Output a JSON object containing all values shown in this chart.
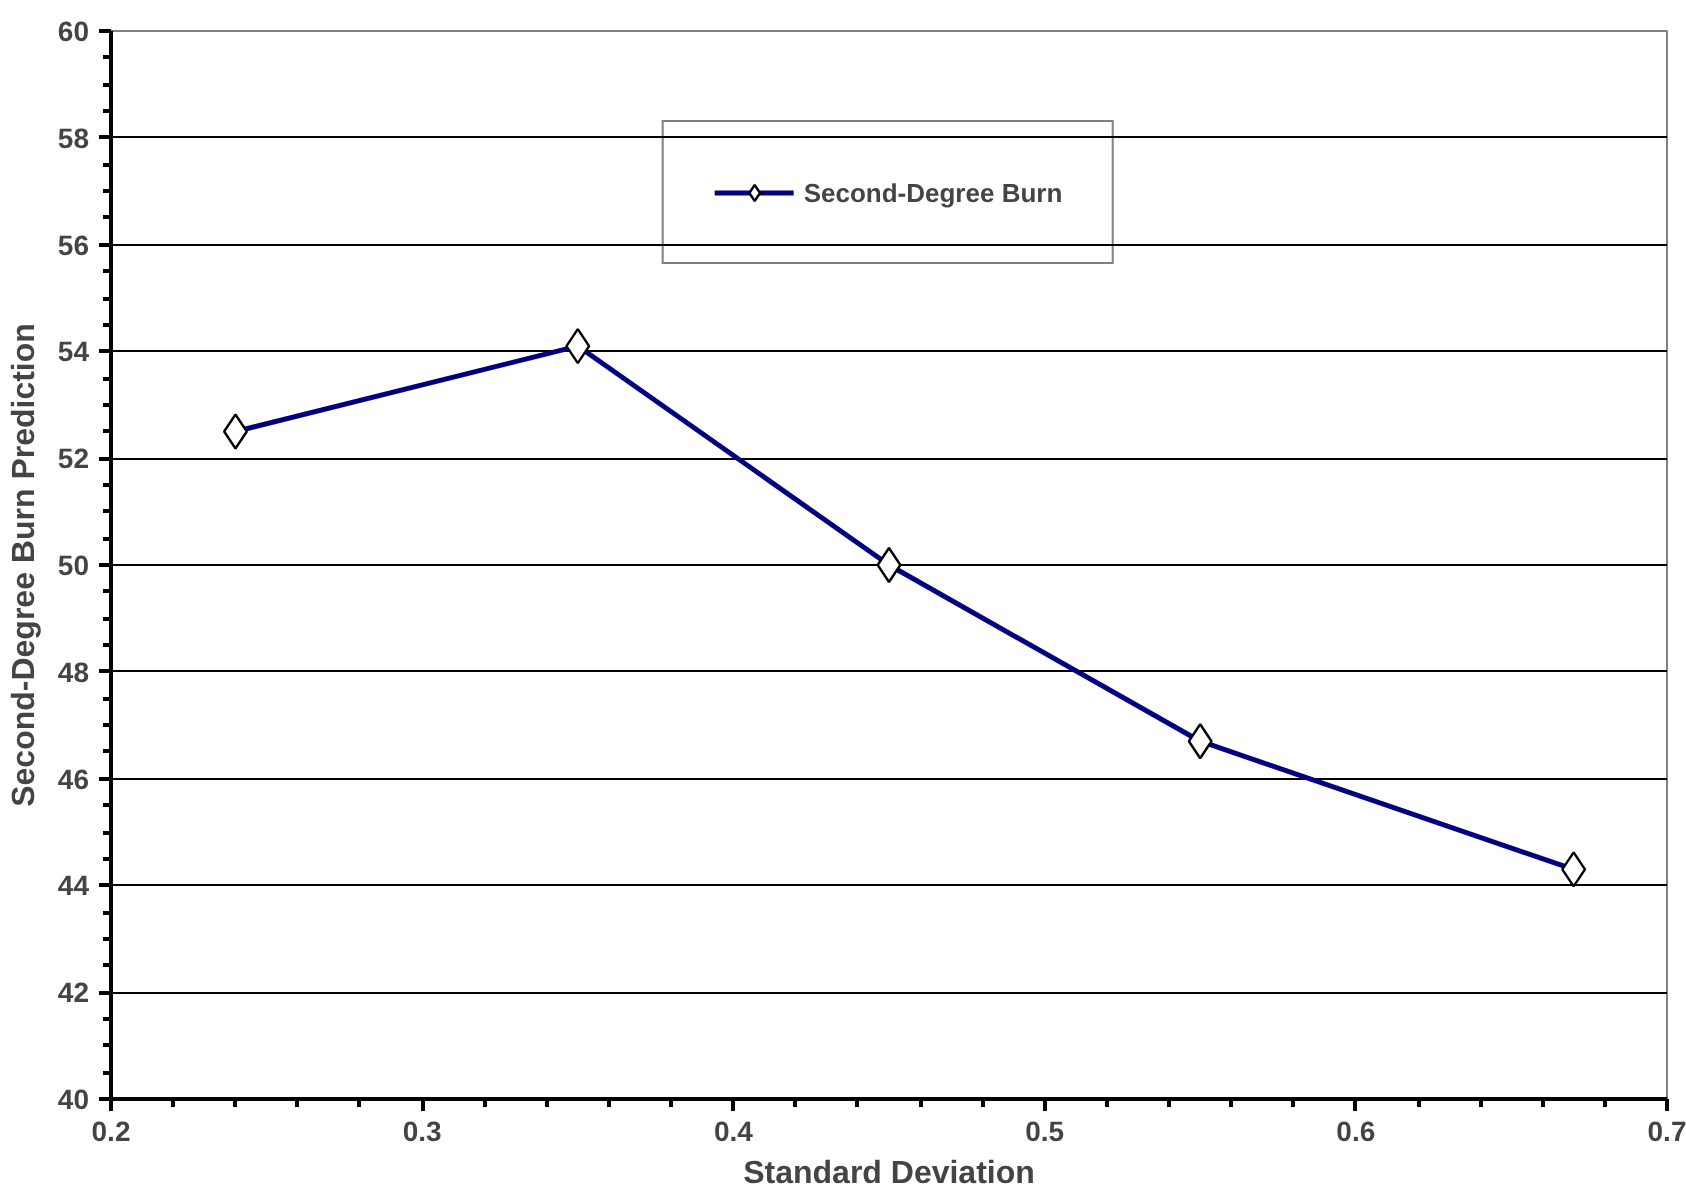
{
  "chart_data": {
    "type": "line",
    "xlabel": "Standard Deviation",
    "ylabel": "Second-Degree Burn Prediction",
    "x": [
      0.24,
      0.35,
      0.45,
      0.55,
      0.67
    ],
    "series": [
      {
        "name": "Second-Degree Burn",
        "color": "#000080",
        "values": [
          52.5,
          54.1,
          50.0,
          46.7,
          44.3
        ]
      }
    ],
    "xlim": [
      0.2,
      0.7
    ],
    "xticks": [
      0.2,
      0.3,
      0.4,
      0.5,
      0.6,
      0.7
    ],
    "ylim": [
      40,
      60
    ],
    "yticks": [
      40,
      42,
      44,
      46,
      48,
      50,
      52,
      54,
      56,
      58,
      60
    ],
    "grid": "y",
    "legend": "top",
    "marker": "diamond",
    "line_style": "solid"
  }
}
